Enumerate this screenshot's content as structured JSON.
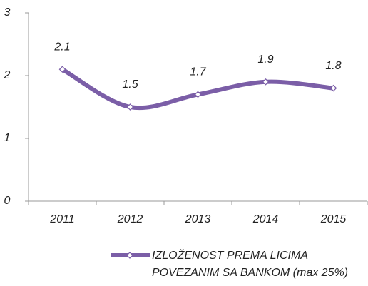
{
  "chart_data": {
    "type": "line",
    "categories": [
      "2011",
      "2012",
      "2013",
      "2014",
      "2015"
    ],
    "series": [
      {
        "name": "IZLOŽENOST PREMA LICIMA POVEZANIM SA BANKOM (max 25%)",
        "color": "#7b5ea7",
        "values": [
          2.1,
          1.5,
          1.7,
          1.9,
          1.8
        ]
      }
    ],
    "ylim": [
      0,
      3
    ],
    "yticks": [
      0,
      1,
      2,
      3
    ],
    "grid": false,
    "smooth": true,
    "legend": "bottom"
  }
}
